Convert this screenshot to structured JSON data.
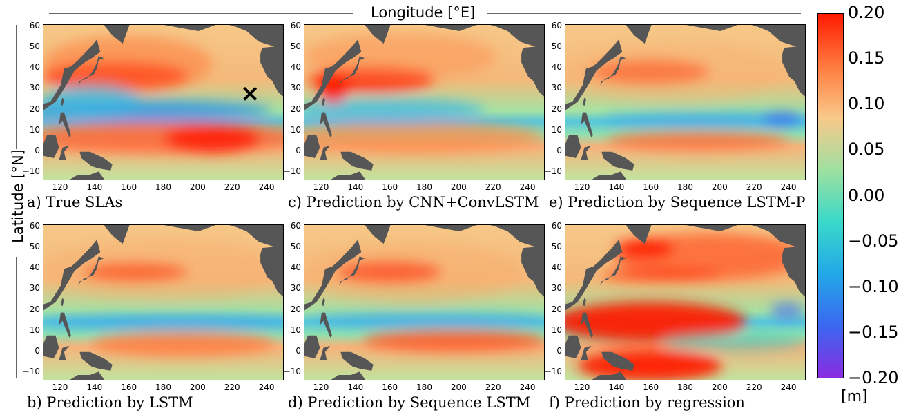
{
  "figure": {
    "x_axis_title": "Longitude [°E]",
    "y_axis_title": "Latitude [°N]"
  },
  "colorbar": {
    "unit": "[m]",
    "ticks": [
      "0.20",
      "0.15",
      "0.10",
      "0.05",
      "0.00",
      "−0.05",
      "−0.10",
      "−0.15",
      "−0.20"
    ],
    "colors": [
      "#ff1a00",
      "#ff7a3d",
      "#f9c98a",
      "#9fe0a0",
      "#3ad9c9",
      "#22a8e8",
      "#3a68f0",
      "#8a2be2"
    ]
  },
  "chart_data": {
    "type": "heatmap",
    "x_ticks": [
      "120",
      "140",
      "160",
      "180",
      "200",
      "220",
      "240"
    ],
    "y_ticks": [
      "60",
      "50",
      "40",
      "30",
      "20",
      "10",
      "0",
      "−10"
    ],
    "xlim": [
      110,
      250
    ],
    "ylim": [
      -15,
      60
    ],
    "value_range": [
      -0.2,
      0.2
    ],
    "marker": {
      "panel": "a",
      "symbol": "×",
      "lon": 230,
      "lat": 27
    },
    "panels": [
      {
        "id": "a",
        "caption": "a) True SLAs"
      },
      {
        "id": "b",
        "caption": "b) Prediction by LSTM"
      },
      {
        "id": "c",
        "caption": "c) Prediction by CNN+ConvLSTM"
      },
      {
        "id": "d",
        "caption": "d) Prediction by Sequence LSTM"
      },
      {
        "id": "e",
        "caption": "e) Prediction by Sequence LSTM-P"
      },
      {
        "id": "f",
        "caption": "f) Prediction by regression"
      }
    ]
  }
}
